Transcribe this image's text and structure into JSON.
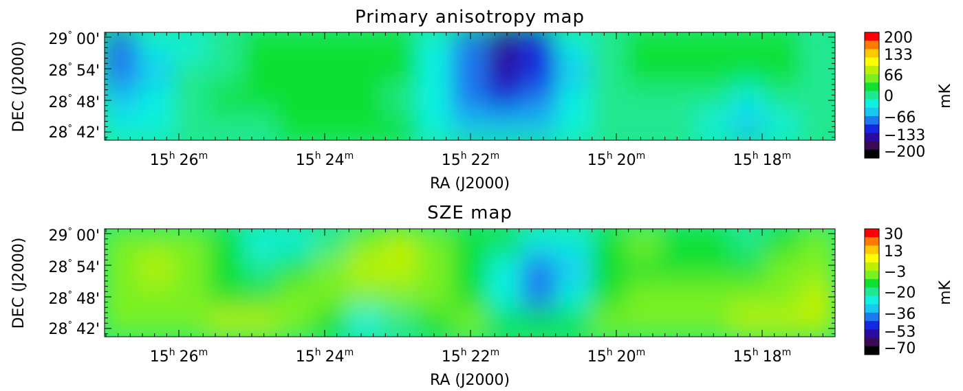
{
  "colormap": [
    "#000000",
    "#3a0a55",
    "#2a0aa0",
    "#1428e0",
    "#1e78f0",
    "#19c8f0",
    "#10f0e0",
    "#20e890",
    "#10e030",
    "#7af020",
    "#bdf000",
    "#ffff00",
    "#ffc800",
    "#ff7a00",
    "#ff0000"
  ],
  "chart_data": [
    {
      "type": "heatmap",
      "title": "Primary anisotropy map",
      "xlabel": "RA (J2000)",
      "ylabel": "DEC (J2000)",
      "x_tick_labels": [
        {
          "h": "15",
          "m": "26"
        },
        {
          "h": "15",
          "m": "24"
        },
        {
          "h": "15",
          "m": "22"
        },
        {
          "h": "15",
          "m": "20"
        },
        {
          "h": "15",
          "m": "18"
        }
      ],
      "y_tick_labels": [
        {
          "deg": "29",
          "min": "00'"
        },
        {
          "deg": "28",
          "min": "54'"
        },
        {
          "deg": "28",
          "min": "48'"
        },
        {
          "deg": "28",
          "min": "42'"
        }
      ],
      "colorbar": {
        "unit": "mK",
        "min": -200,
        "max": 200,
        "tick_labels": [
          "200",
          "133",
          "66",
          "0",
          "−66",
          "−133",
          "−200"
        ]
      },
      "grid_cols": 21,
      "grid_rows": 4,
      "grid_values": [
        [
          -75,
          -35,
          -20,
          5,
          15,
          25,
          25,
          30,
          20,
          -15,
          -85,
          -130,
          -110,
          -40,
          10,
          15,
          15,
          20,
          20,
          15,
          10
        ],
        [
          -95,
          -50,
          -10,
          10,
          20,
          30,
          35,
          35,
          25,
          -20,
          -100,
          -155,
          -125,
          -45,
          10,
          15,
          20,
          25,
          20,
          15,
          10
        ],
        [
          -55,
          -30,
          -5,
          15,
          25,
          25,
          20,
          15,
          10,
          -25,
          -85,
          -125,
          -95,
          -35,
          5,
          10,
          5,
          -5,
          -15,
          -10,
          5
        ],
        [
          -30,
          -20,
          -5,
          5,
          10,
          15,
          15,
          15,
          15,
          -15,
          -45,
          -60,
          -45,
          -15,
          5,
          0,
          -10,
          -35,
          -45,
          -20,
          0
        ]
      ]
    },
    {
      "type": "heatmap",
      "title": "SZE map",
      "xlabel": "RA (J2000)",
      "ylabel": "DEC (J2000)",
      "x_tick_labels": [
        {
          "h": "15",
          "m": "26"
        },
        {
          "h": "15",
          "m": "24"
        },
        {
          "h": "15",
          "m": "22"
        },
        {
          "h": "15",
          "m": "20"
        },
        {
          "h": "15",
          "m": "18"
        }
      ],
      "y_tick_labels": [
        {
          "deg": "29",
          "min": "00'"
        },
        {
          "deg": "28",
          "min": "54'"
        },
        {
          "deg": "28",
          "min": "48'"
        },
        {
          "deg": "28",
          "min": "42'"
        }
      ],
      "colorbar": {
        "unit": "mK",
        "min": -70,
        "max": 30,
        "tick_labels": [
          "30",
          "13",
          "−3",
          "−20",
          "−36",
          "−53",
          "−70"
        ]
      },
      "grid_cols": 21,
      "grid_rows": 4,
      "grid_values": [
        [
          -6,
          -4,
          -8,
          -14,
          -24,
          -26,
          -18,
          -6,
          -2,
          -4,
          -10,
          -14,
          -26,
          -24,
          -12,
          -8,
          -10,
          -16,
          -22,
          -14,
          -6
        ],
        [
          -4,
          -2,
          -6,
          -12,
          -20,
          -14,
          -6,
          -2,
          -2,
          -6,
          -12,
          -30,
          -44,
          -36,
          -14,
          -10,
          -12,
          -16,
          -14,
          -8,
          -4
        ],
        [
          -6,
          -4,
          -6,
          -10,
          -12,
          -8,
          -4,
          -4,
          -6,
          -8,
          -12,
          -30,
          -40,
          -26,
          -12,
          -8,
          -6,
          -8,
          -6,
          -4,
          -2
        ],
        [
          -8,
          -6,
          -4,
          -2,
          -2,
          -4,
          -12,
          -24,
          -20,
          -10,
          -8,
          -14,
          -16,
          -12,
          -8,
          -6,
          -6,
          -4,
          -2,
          -2,
          -2
        ]
      ]
    }
  ]
}
